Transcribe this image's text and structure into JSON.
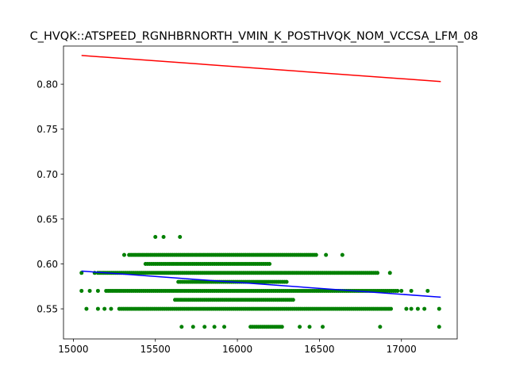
{
  "chart_data": {
    "type": "scatter",
    "title": "C_HVQK::ATSPEED_RGNHBRNORTH_VMIN_K_POSTHVQK_NOM_VCCSA_LFM_08",
    "xlabel": "",
    "ylabel": "",
    "xlim": [
      14940,
      17340
    ],
    "ylim": [
      0.5165,
      0.8425
    ],
    "xticks": [
      15000,
      15500,
      16000,
      16500,
      17000
    ],
    "yticks": [
      0.55,
      0.6,
      0.65,
      0.7,
      0.75,
      0.8
    ],
    "ytick_labels": [
      "0.55",
      "0.60",
      "0.65",
      "0.70",
      "0.75",
      "0.80"
    ],
    "grid": false,
    "colors": {
      "points": "#008000",
      "upper_line": "#ff0000",
      "fit_line": "#0000ff"
    },
    "series": [
      {
        "kind": "scatter",
        "rows": [
          {
            "y": 0.63,
            "segments": [
              [
                15500,
                15500
              ]
            ],
            "points": [
              15550,
              15650
            ]
          },
          {
            "y": 0.61,
            "segments": [
              [
                15340,
                16480
              ]
            ],
            "points": [
              15310,
              16540,
              16640
            ]
          },
          {
            "y": 0.6,
            "segments": [
              [
                15440,
                16200
              ]
            ],
            "points": []
          },
          {
            "y": 0.59,
            "segments": [
              [
                15150,
                16860
              ]
            ],
            "points": [
              15050,
              15130,
              16930
            ]
          },
          {
            "y": 0.58,
            "segments": [
              [
                15640,
                16300
              ]
            ],
            "points": []
          },
          {
            "y": 0.57,
            "segments": [
              [
                15200,
                16980
              ]
            ],
            "points": [
              15050,
              15100,
              15150,
              17000,
              17060,
              17160
            ]
          },
          {
            "y": 0.56,
            "segments": [
              [
                15620,
                16350
              ]
            ],
            "points": []
          },
          {
            "y": 0.55,
            "segments": [
              [
                15280,
                16940
              ]
            ],
            "points": [
              15080,
              15150,
              15190,
              15230,
              17030,
              17060,
              17100,
              17140,
              17230
            ]
          },
          {
            "y": 0.53,
            "segments": [
              [
                16080,
                16280
              ]
            ],
            "points": [
              15660,
              15730,
              15800,
              15860,
              15920,
              16380,
              16440,
              16520,
              16870,
              17230
            ]
          }
        ]
      },
      {
        "kind": "line",
        "x": [
          15050,
          17240
        ],
        "y": [
          0.832,
          0.803
        ]
      },
      {
        "kind": "line",
        "x": [
          15050,
          17240
        ],
        "y": [
          0.592,
          0.563
        ]
      }
    ]
  }
}
